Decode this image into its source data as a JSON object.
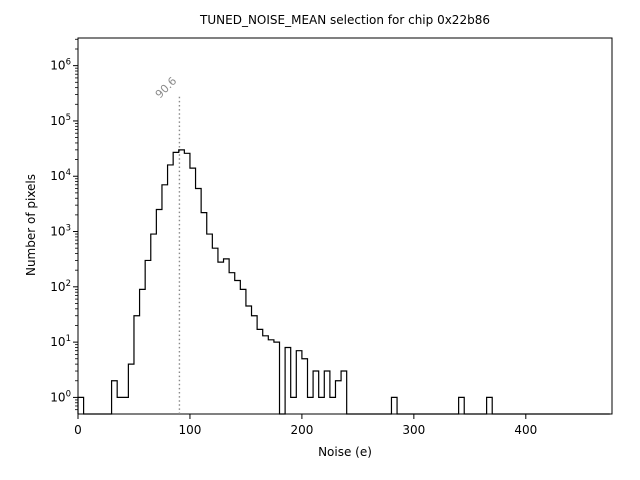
{
  "figure": {
    "title": "TUNED_NOISE_MEAN selection for chip 0x22b86",
    "xlabel": "Noise (e)",
    "ylabel": "Number of pixels"
  },
  "chart_data": {
    "type": "bar",
    "style": "step-histogram-log-y",
    "title": "TUNED_NOISE_MEAN selection for chip 0x22b86",
    "xlabel": "Noise (e)",
    "ylabel": "Number of pixels",
    "xlim": [
      0,
      477
    ],
    "ylim_log10": [
      -0.3,
      6.5
    ],
    "x_ticks": [
      0,
      100,
      200,
      300,
      400
    ],
    "y_tick_exponents": [
      0,
      1,
      2,
      3,
      4,
      5,
      6
    ],
    "grid": "off",
    "legend": "none",
    "bin_start": 0,
    "bin_width": 5,
    "counts": [
      1,
      0,
      0,
      0,
      0,
      0,
      2,
      1,
      1,
      4,
      30,
      90,
      300,
      900,
      2500,
      7000,
      16000,
      27000,
      30000,
      26000,
      14000,
      6000,
      2200,
      900,
      500,
      280,
      320,
      180,
      130,
      90,
      45,
      30,
      17,
      13,
      11,
      10,
      0,
      8,
      1,
      7,
      5,
      1,
      3,
      1,
      3,
      1,
      2,
      3,
      0,
      0,
      0,
      0,
      0,
      0,
      0,
      0,
      1,
      0,
      0,
      0,
      0,
      0,
      0,
      0,
      0,
      0,
      0,
      0,
      1,
      0,
      0,
      0,
      0,
      1,
      0,
      0,
      0,
      0,
      0,
      0,
      0,
      0,
      0,
      0,
      0,
      0,
      0,
      0,
      0,
      0,
      0,
      0,
      0,
      0,
      0
    ],
    "line_color": "#000000",
    "vline": {
      "x": 90.6,
      "label": "90.6",
      "color": "#8a8a8a",
      "style": "dotted",
      "top_log10": 5.45
    },
    "annotation_color": "#8a8a8a"
  }
}
